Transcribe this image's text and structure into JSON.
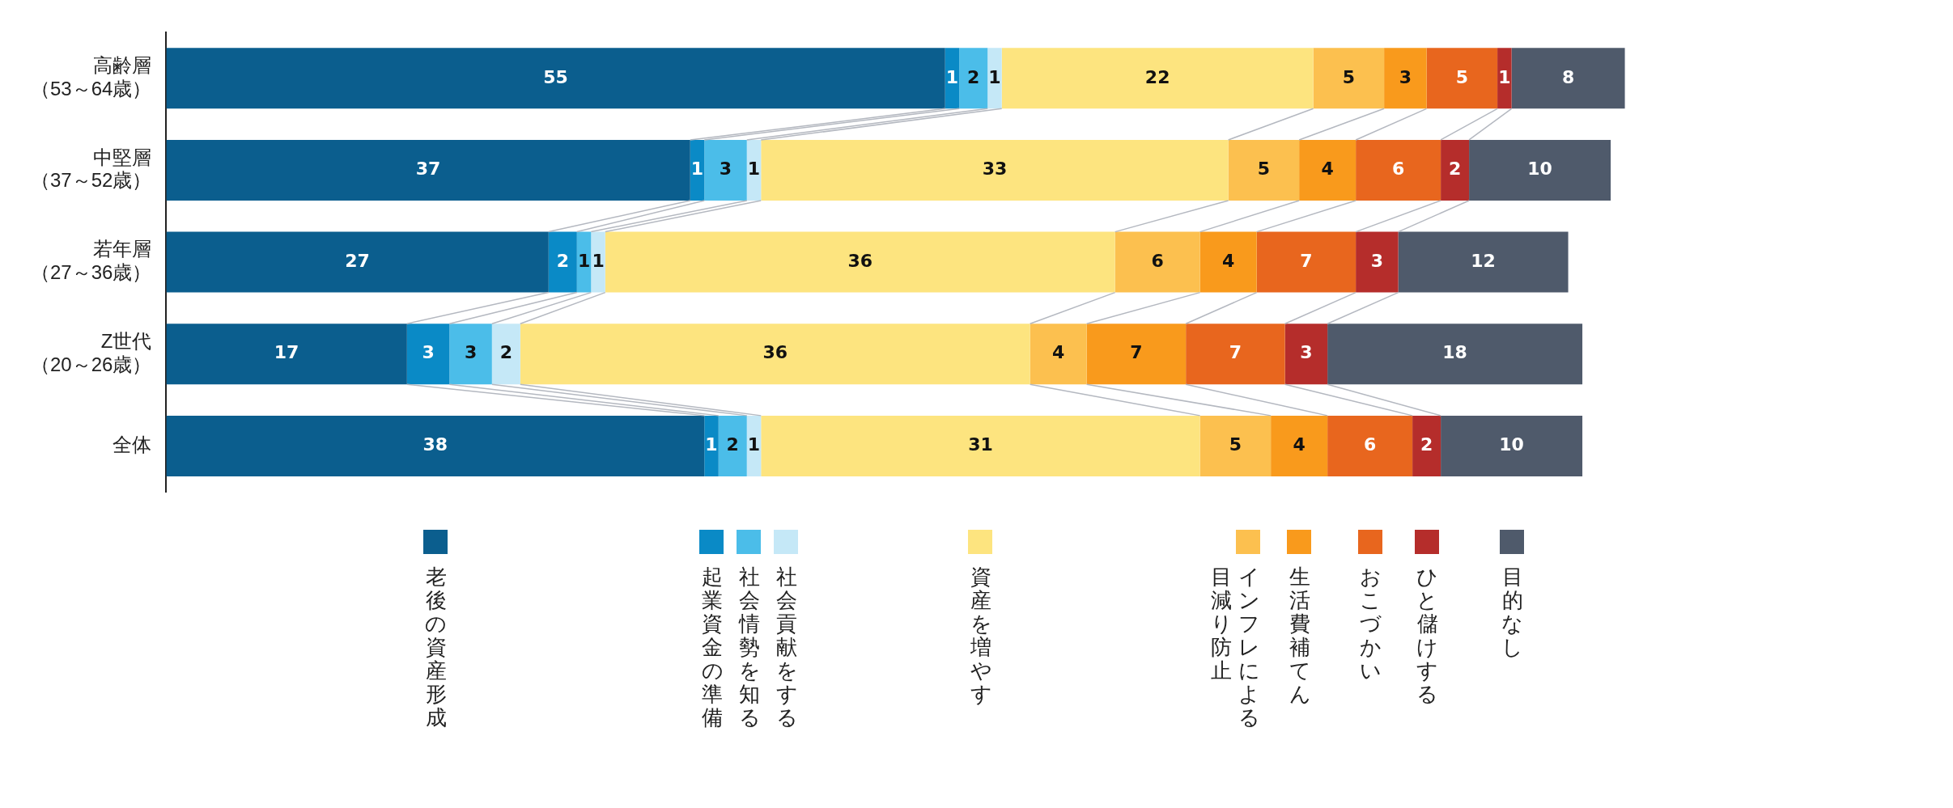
{
  "chart_data": {
    "type": "bar",
    "orientation": "horizontal",
    "stacked": true,
    "data_labels": true,
    "legend": "bottom",
    "tick_labels": "y",
    "categories": [
      "高齢層（53～64歳）",
      "中堅層（37～52歳）",
      "若年層（27～36歳）",
      "Z世代（20～26歳）",
      "全体"
    ],
    "series": [
      {
        "name": "老後の資産形成",
        "color": "#0b5e8e",
        "values": [
          55,
          37,
          27,
          17,
          38
        ]
      },
      {
        "name": "起業資金の準備",
        "color": "#0a8ac6",
        "values": [
          1,
          1,
          2,
          3,
          1
        ]
      },
      {
        "name": "社会情勢を知る",
        "color": "#4bbde9",
        "values": [
          2,
          3,
          1,
          3,
          2
        ]
      },
      {
        "name": "社会貢献をする",
        "color": "#c5e8f7",
        "values": [
          1,
          1,
          1,
          2,
          1
        ]
      },
      {
        "name": "資産を増やす",
        "color": "#fde47f",
        "values": [
          22,
          33,
          36,
          36,
          31
        ]
      },
      {
        "name": "インフレによる目減り防止",
        "color": "#fcc04f",
        "values": [
          5,
          5,
          6,
          4,
          5
        ]
      },
      {
        "name": "生活費補てん",
        "color": "#f99a1c",
        "values": [
          3,
          4,
          4,
          7,
          4
        ]
      },
      {
        "name": "おこづかい",
        "color": "#e8661e",
        "values": [
          5,
          6,
          7,
          7,
          6
        ]
      },
      {
        "name": "ひと儲けする",
        "color": "#b52d2b",
        "values": [
          1,
          2,
          3,
          3,
          2
        ]
      },
      {
        "name": "目的なし",
        "color": "#4f5a6b",
        "values": [
          8,
          10,
          12,
          18,
          10
        ]
      }
    ]
  }
}
